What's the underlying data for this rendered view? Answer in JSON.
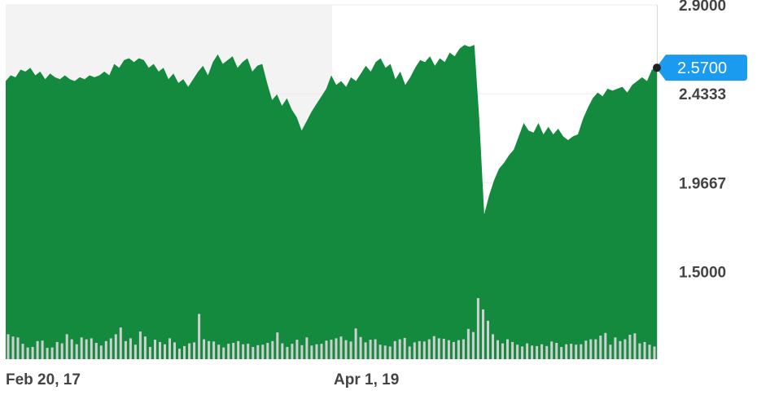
{
  "chart_data": {
    "type": "area",
    "title": "",
    "xlabel": "",
    "ylabel": "",
    "x_tick_labels": [
      "Feb 20, 17",
      "Apr 1, 19"
    ],
    "y_ticks": [
      2.9,
      2.4333,
      1.9667,
      1.5
    ],
    "y_tick_labels": [
      "2.9000",
      "2.4333",
      "1.9667",
      "1.5000"
    ],
    "ylim": [
      1.04,
      2.9
    ],
    "grid": "horizontal",
    "last_value": 2.57,
    "last_value_label": "2.5700",
    "colors": {
      "area": "#138a3e",
      "volume": "#cfcfcf",
      "shaded_period": "#f3f3f3",
      "badge": "#1a9bf0",
      "marker": "#222222",
      "axis_text": "#444444"
    },
    "series": [
      {
        "values": [
          2.5,
          2.53,
          2.52,
          2.56,
          2.55,
          2.57,
          2.53,
          2.55,
          2.51,
          2.54,
          2.52,
          2.51,
          2.53,
          2.51,
          2.5,
          2.52,
          2.51,
          2.53,
          2.52,
          2.53,
          2.55,
          2.53,
          2.59,
          2.57,
          2.61,
          2.62,
          2.6,
          2.62,
          2.61,
          2.57,
          2.59,
          2.55,
          2.57,
          2.51,
          2.54,
          2.49,
          2.51,
          2.47,
          2.51,
          2.55,
          2.58,
          2.53,
          2.6,
          2.64,
          2.59,
          2.61,
          2.63,
          2.57,
          2.6,
          2.62,
          2.55,
          2.58,
          2.59,
          2.49,
          2.4,
          2.43,
          2.37,
          2.41,
          2.35,
          2.31,
          2.24,
          2.29,
          2.34,
          2.38,
          2.42,
          2.46,
          2.53,
          2.48,
          2.5,
          2.47,
          2.52,
          2.5,
          2.54,
          2.58,
          2.55,
          2.6,
          2.62,
          2.57,
          2.59,
          2.51,
          2.55,
          2.48,
          2.52,
          2.57,
          2.61,
          2.6,
          2.63,
          2.58,
          2.62,
          2.6,
          2.65,
          2.63,
          2.67,
          2.69,
          2.68,
          2.69,
          2.3,
          1.8,
          1.9,
          1.98,
          2.04,
          2.07,
          2.11,
          2.14,
          2.21,
          2.28,
          2.24,
          2.23,
          2.28,
          2.22,
          2.26,
          2.22,
          2.25,
          2.21,
          2.19,
          2.21,
          2.22,
          2.3,
          2.36,
          2.41,
          2.44,
          2.42,
          2.46,
          2.45,
          2.46,
          2.47,
          2.44,
          2.48,
          2.5,
          2.52,
          2.5,
          2.56,
          2.57
        ]
      }
    ],
    "volume": [
      0.55,
      0.5,
      0.48,
      0.34,
      0.26,
      0.27,
      0.4,
      0.41,
      0.25,
      0.26,
      0.38,
      0.35,
      0.55,
      0.44,
      0.33,
      0.48,
      0.44,
      0.46,
      0.36,
      0.3,
      0.4,
      0.46,
      0.55,
      0.7,
      0.4,
      0.46,
      0.32,
      0.61,
      0.5,
      0.27,
      0.43,
      0.38,
      0.33,
      0.46,
      0.37,
      0.23,
      0.29,
      0.35,
      0.37,
      1.0,
      0.44,
      0.4,
      0.39,
      0.32,
      0.26,
      0.34,
      0.36,
      0.4,
      0.33,
      0.34,
      0.27,
      0.31,
      0.32,
      0.36,
      0.4,
      0.59,
      0.35,
      0.27,
      0.34,
      0.43,
      0.31,
      0.48,
      0.3,
      0.33,
      0.34,
      0.41,
      0.43,
      0.46,
      0.5,
      0.42,
      0.39,
      0.68,
      0.49,
      0.37,
      0.43,
      0.44,
      0.32,
      0.3,
      0.28,
      0.4,
      0.44,
      0.47,
      0.28,
      0.37,
      0.4,
      0.39,
      0.44,
      0.51,
      0.46,
      0.45,
      0.42,
      0.38,
      0.42,
      0.44,
      0.67,
      0.6,
      1.35,
      1.1,
      0.85,
      0.55,
      0.42,
      0.35,
      0.44,
      0.38,
      0.32,
      0.28,
      0.35,
      0.3,
      0.29,
      0.33,
      0.29,
      0.39,
      0.36,
      0.27,
      0.33,
      0.34,
      0.32,
      0.33,
      0.41,
      0.44,
      0.44,
      0.52,
      0.58,
      0.32,
      0.48,
      0.4,
      0.44,
      0.54,
      0.57,
      0.35,
      0.38,
      0.32,
      0.28
    ]
  }
}
